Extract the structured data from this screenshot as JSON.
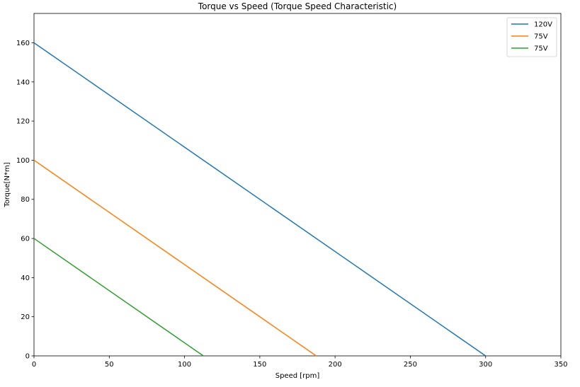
{
  "chart_data": {
    "type": "line",
    "title": "Torque vs Speed (Torque Speed Characteristic)",
    "xlabel": "Speed [rpm]",
    "ylabel": "Torque[N*m]",
    "xlim": [
      0,
      350
    ],
    "ylim": [
      0,
      175
    ],
    "xticks": [
      0,
      50,
      100,
      150,
      200,
      250,
      300,
      350
    ],
    "yticks": [
      0,
      20,
      40,
      60,
      80,
      100,
      120,
      140,
      160
    ],
    "grid": false,
    "legend": "top-right",
    "series": [
      {
        "name": "120V",
        "color": "#1f77b4",
        "x": [
          0,
          300
        ],
        "y": [
          160,
          0
        ]
      },
      {
        "name": "75V",
        "color": "#ff7f0e",
        "x": [
          0,
          187.5
        ],
        "y": [
          100,
          0
        ]
      },
      {
        "name": "75V",
        "color": "#2ca02c",
        "x": [
          0,
          112.5
        ],
        "y": [
          60,
          0
        ]
      }
    ]
  }
}
